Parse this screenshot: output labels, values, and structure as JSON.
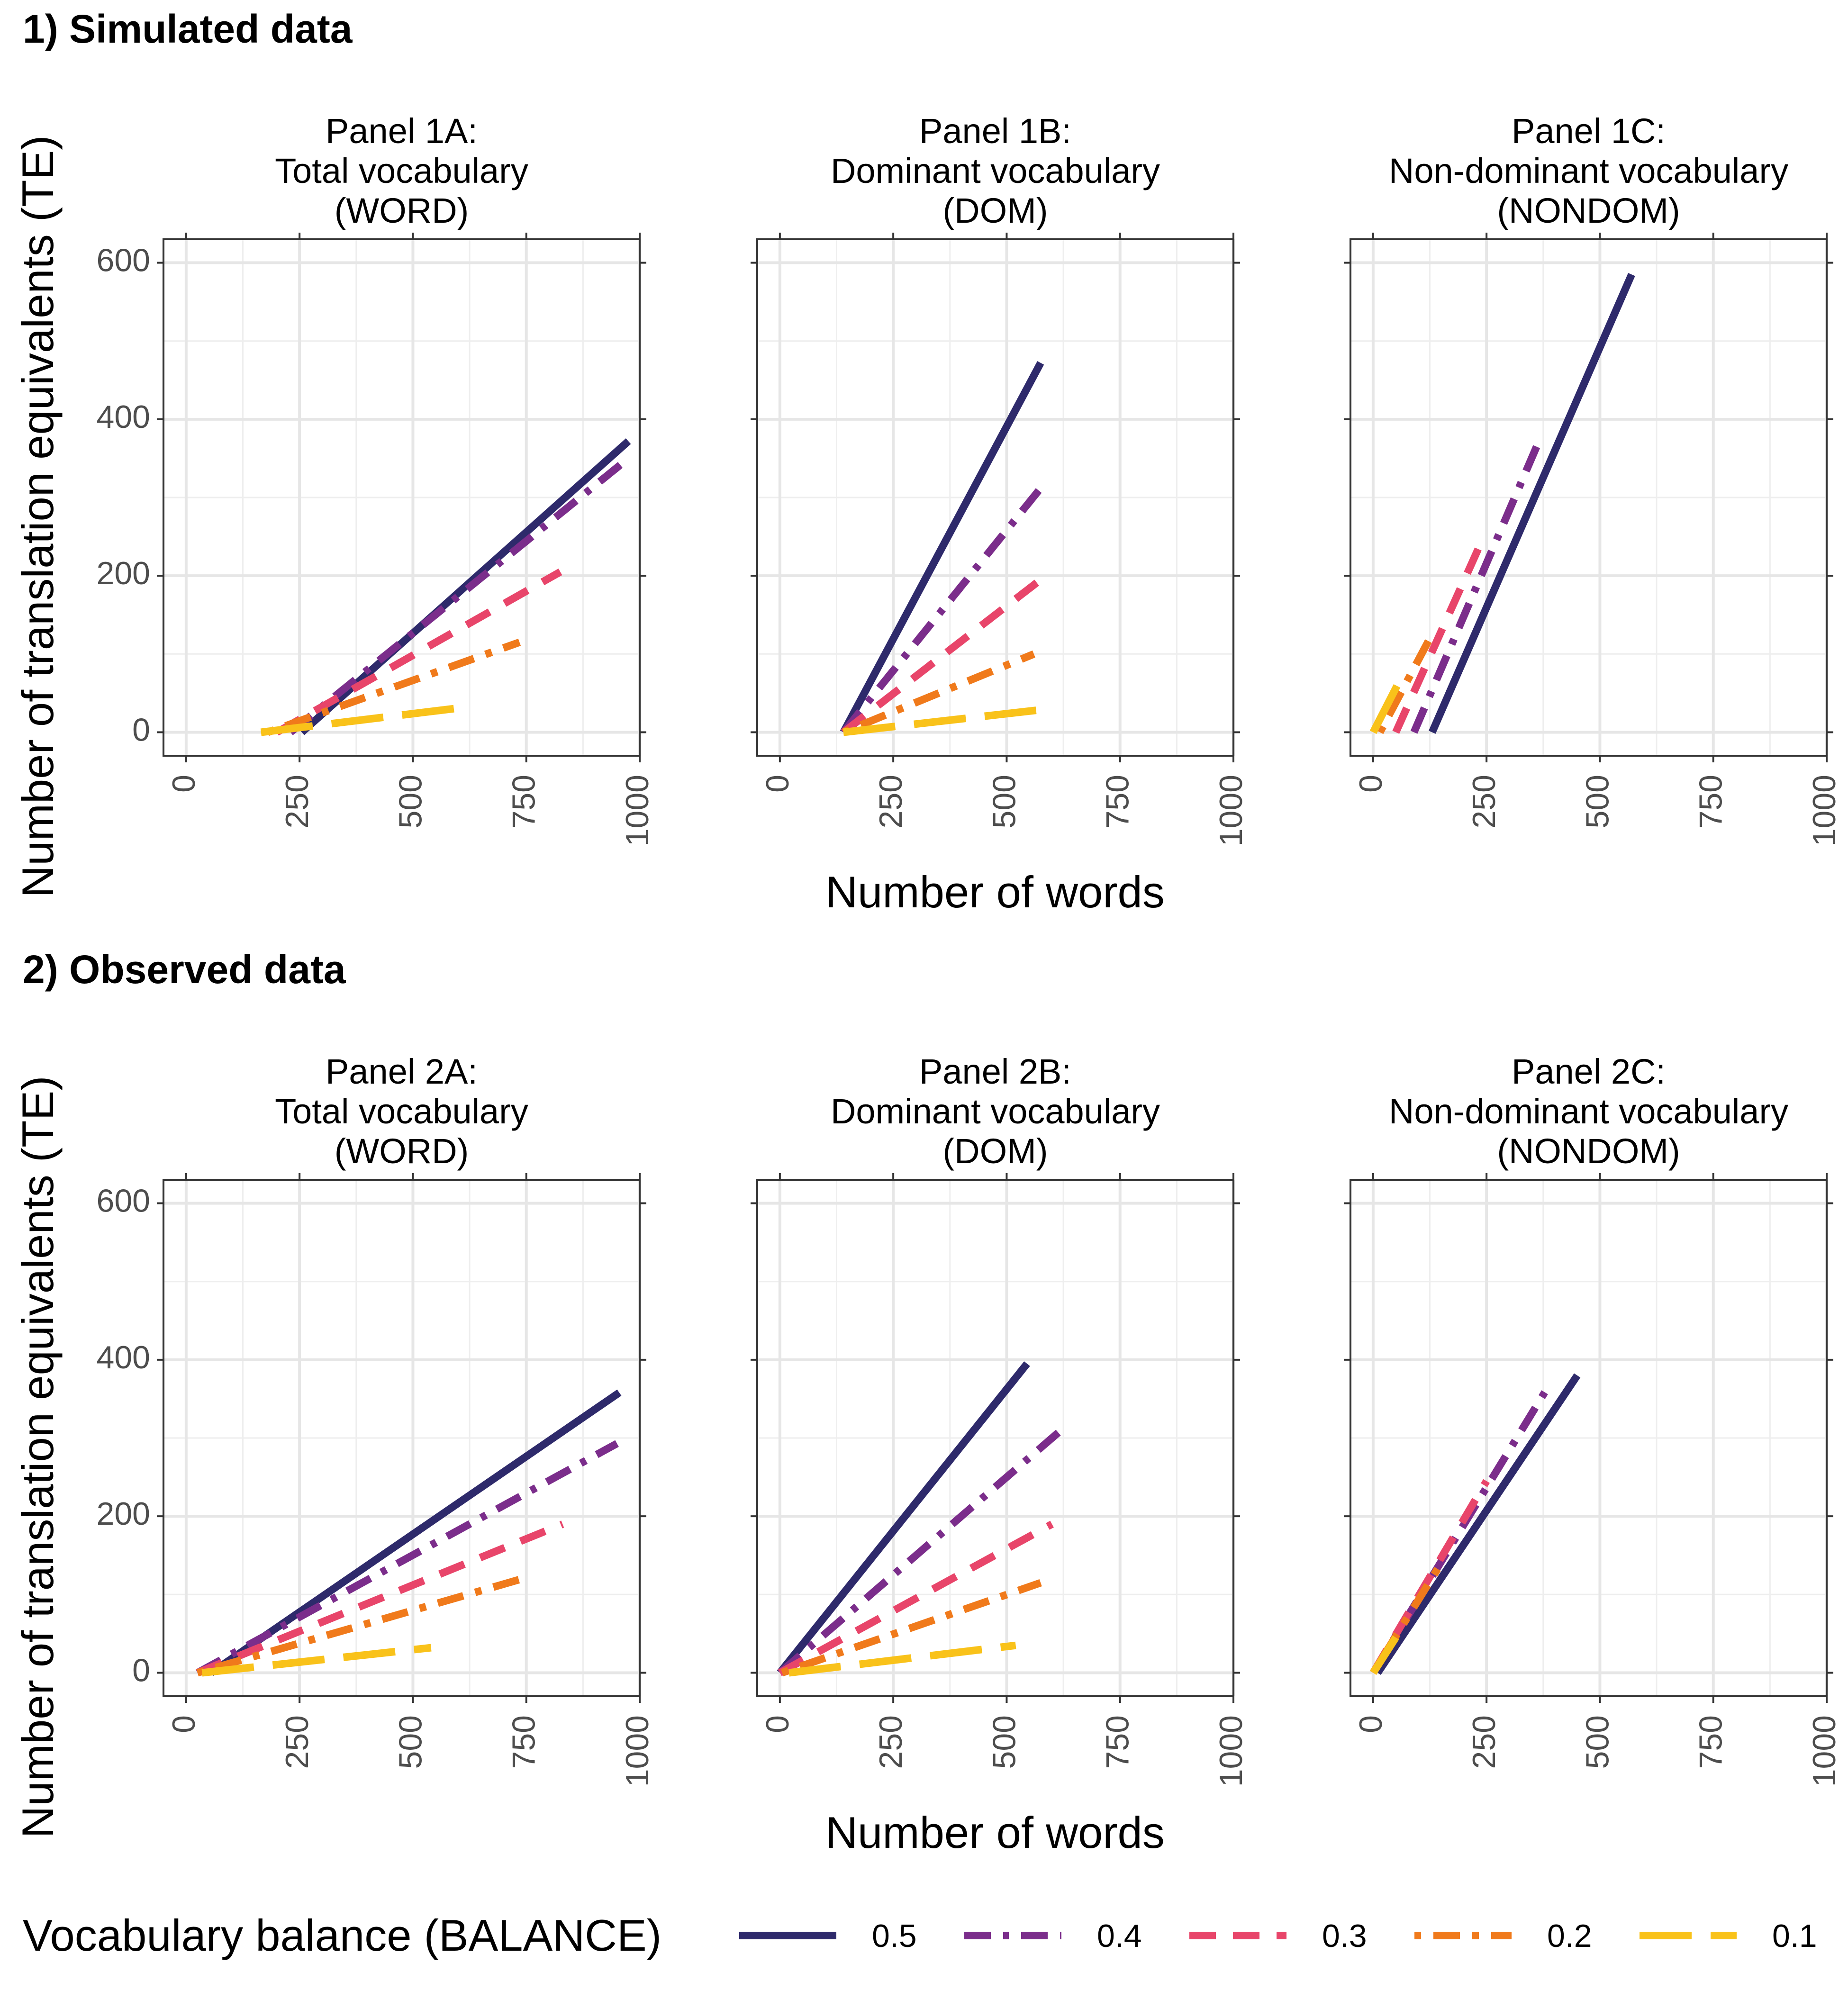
{
  "sections": [
    {
      "title": "1) Simulated data",
      "panels": [
        {
          "title_lines": [
            "Panel 1A:",
            "Total vocabulary",
            "(WORD)"
          ],
          "series": [
            {
              "balance": "0.5",
              "points": [
                [
                  255,
                  0
                ],
                [
                  975,
                  372
                ]
              ]
            },
            {
              "balance": "0.4",
              "points": [
                [
                  230,
                  0
                ],
                [
                  975,
                  350
                ]
              ]
            },
            {
              "balance": "0.3",
              "points": [
                [
                  200,
                  0
                ],
                [
                  825,
                  205
                ]
              ]
            },
            {
              "balance": "0.2",
              "points": [
                [
                  180,
                  0
                ],
                [
                  735,
                  115
                ]
              ]
            },
            {
              "balance": "0.1",
              "points": [
                [
                  165,
                  0
                ],
                [
                  630,
                  33
                ]
              ]
            }
          ]
        },
        {
          "title_lines": [
            "Panel 1B:",
            "Dominant vocabulary",
            "(DOM)"
          ],
          "series": [
            {
              "balance": "0.5",
              "points": [
                [
                  140,
                  0
                ],
                [
                  575,
                  472
                ]
              ]
            },
            {
              "balance": "0.4",
              "points": [
                [
                  140,
                  0
                ],
                [
                  575,
                  312
                ]
              ]
            },
            {
              "balance": "0.3",
              "points": [
                [
                  140,
                  0
                ],
                [
                  575,
                  195
                ]
              ]
            },
            {
              "balance": "0.2",
              "points": [
                [
                  140,
                  0
                ],
                [
                  560,
                  100
                ]
              ]
            },
            {
              "balance": "0.1",
              "points": [
                [
                  140,
                  0
                ],
                [
                  565,
                  28
                ]
              ]
            }
          ]
        },
        {
          "title_lines": [
            "Panel 1C:",
            "Non-dominant vocabulary",
            "(NONDOM)"
          ],
          "series": [
            {
              "balance": "0.5",
              "points": [
                [
                  130,
                  0
                ],
                [
                  570,
                  585
                ]
              ]
            },
            {
              "balance": "0.4",
              "points": [
                [
                  90,
                  0
                ],
                [
                  370,
                  378
                ]
              ]
            },
            {
              "balance": "0.3",
              "points": [
                [
                  50,
                  0
                ],
                [
                  240,
                  245
                ]
              ]
            },
            {
              "balance": "0.2",
              "points": [
                [
                  15,
                  0
                ],
                [
                  125,
                  120
                ]
              ]
            },
            {
              "balance": "0.1",
              "points": [
                [
                  0,
                  0
                ],
                [
                  55,
                  62
                ]
              ]
            }
          ]
        }
      ]
    },
    {
      "title": "2) Observed data",
      "panels": [
        {
          "title_lines": [
            "Panel 2A:",
            "Total vocabulary",
            "(WORD)"
          ],
          "series": [
            {
              "balance": "0.5",
              "points": [
                [
                  55,
                  0
                ],
                [
                  955,
                  358
                ]
              ]
            },
            {
              "balance": "0.4",
              "points": [
                [
                  25,
                  0
                ],
                [
                  950,
                  293
                ]
              ]
            },
            {
              "balance": "0.3",
              "points": [
                [
                  25,
                  0
                ],
                [
                  830,
                  190
                ]
              ]
            },
            {
              "balance": "0.2",
              "points": [
                [
                  25,
                  0
                ],
                [
                  740,
                  120
                ]
              ]
            },
            {
              "balance": "0.1",
              "points": [
                [
                  35,
                  0
                ],
                [
                  540,
                  32
                ]
              ]
            }
          ]
        },
        {
          "title_lines": [
            "Panel 2B:",
            "Dominant vocabulary",
            "(DOM)"
          ],
          "series": [
            {
              "balance": "0.5",
              "points": [
                [
                  0,
                  0
                ],
                [
                  545,
                  395
                ]
              ]
            },
            {
              "balance": "0.4",
              "points": [
                [
                  0,
                  0
                ],
                [
                  620,
                  310
                ]
              ]
            },
            {
              "balance": "0.3",
              "points": [
                [
                  0,
                  0
                ],
                [
                  600,
                  190
                ]
              ]
            },
            {
              "balance": "0.2",
              "points": [
                [
                  5,
                  0
                ],
                [
                  575,
                  115
                ]
              ]
            },
            {
              "balance": "0.1",
              "points": [
                [
                  20,
                  0
                ],
                [
                  520,
                  35
                ]
              ]
            }
          ]
        },
        {
          "title_lines": [
            "Panel 2C:",
            "Non-dominant vocabulary",
            "(NONDOM)"
          ],
          "series": [
            {
              "balance": "0.5",
              "points": [
                [
                  10,
                  0
                ],
                [
                  450,
                  380
                ]
              ]
            },
            {
              "balance": "0.4",
              "points": [
                [
                  0,
                  0
                ],
                [
                  380,
                  360
                ]
              ]
            },
            {
              "balance": "0.3",
              "points": [
                [
                  0,
                  0
                ],
                [
                  250,
                  245
                ]
              ]
            },
            {
              "balance": "0.2",
              "points": [
                [
                  0,
                  0
                ],
                [
                  150,
                  140
                ]
              ]
            },
            {
              "balance": "0.1",
              "points": [
                [
                  0,
                  0
                ],
                [
                  50,
                  45
                ]
              ]
            }
          ]
        }
      ]
    }
  ],
  "y_axis_title": "Number of translation equivalents (TE)",
  "x_axis_title": "Number of words",
  "x_ticks": [
    "0",
    "250",
    "500",
    "750",
    "1000"
  ],
  "y_ticks": [
    "0",
    "200",
    "400",
    "600"
  ],
  "legend": {
    "title": "Vocabulary balance (BALANCE)",
    "items": [
      {
        "label": "0.5",
        "color": "#2e2a6b",
        "dash": "solid"
      },
      {
        "label": "0.4",
        "color": "#7b2d8b",
        "dash": "dashdot"
      },
      {
        "label": "0.3",
        "color": "#e8456a",
        "dash": "dashed"
      },
      {
        "label": "0.2",
        "color": "#f07a1b",
        "dash": "dotdash"
      },
      {
        "label": "0.1",
        "color": "#f9c21a",
        "dash": "longdash"
      }
    ]
  },
  "chart_data": [
    {
      "type": "line",
      "title": "Panel 1A: Total vocabulary (WORD)",
      "xlabel": "Number of words",
      "ylabel": "Number of translation equivalents (TE)",
      "xlim": [
        -50,
        1000
      ],
      "ylim": [
        -30,
        630
      ],
      "grid": true,
      "legend_position": "bottom",
      "series": [
        {
          "name": "0.5",
          "x": [
            255,
            975
          ],
          "y": [
            0,
            372
          ]
        },
        {
          "name": "0.4",
          "x": [
            230,
            975
          ],
          "y": [
            0,
            350
          ]
        },
        {
          "name": "0.3",
          "x": [
            200,
            825
          ],
          "y": [
            0,
            205
          ]
        },
        {
          "name": "0.2",
          "x": [
            180,
            735
          ],
          "y": [
            0,
            115
          ]
        },
        {
          "name": "0.1",
          "x": [
            165,
            630
          ],
          "y": [
            0,
            33
          ]
        }
      ]
    },
    {
      "type": "line",
      "title": "Panel 1B: Dominant vocabulary (DOM)",
      "xlabel": "Number of words",
      "ylabel": "Number of translation equivalents (TE)",
      "xlim": [
        -50,
        1000
      ],
      "ylim": [
        -30,
        630
      ],
      "grid": true,
      "legend_position": "bottom",
      "series": [
        {
          "name": "0.5",
          "x": [
            140,
            575
          ],
          "y": [
            0,
            472
          ]
        },
        {
          "name": "0.4",
          "x": [
            140,
            575
          ],
          "y": [
            0,
            312
          ]
        },
        {
          "name": "0.3",
          "x": [
            140,
            575
          ],
          "y": [
            0,
            195
          ]
        },
        {
          "name": "0.2",
          "x": [
            140,
            560
          ],
          "y": [
            0,
            100
          ]
        },
        {
          "name": "0.1",
          "x": [
            140,
            565
          ],
          "y": [
            0,
            28
          ]
        }
      ]
    },
    {
      "type": "line",
      "title": "Panel 1C: Non-dominant vocabulary (NONDOM)",
      "xlabel": "Number of words",
      "ylabel": "Number of translation equivalents (TE)",
      "xlim": [
        -50,
        1000
      ],
      "ylim": [
        -30,
        630
      ],
      "grid": true,
      "legend_position": "bottom",
      "series": [
        {
          "name": "0.5",
          "x": [
            130,
            570
          ],
          "y": [
            0,
            585
          ]
        },
        {
          "name": "0.4",
          "x": [
            90,
            370
          ],
          "y": [
            0,
            378
          ]
        },
        {
          "name": "0.3",
          "x": [
            50,
            240
          ],
          "y": [
            0,
            245
          ]
        },
        {
          "name": "0.2",
          "x": [
            15,
            125
          ],
          "y": [
            0,
            120
          ]
        },
        {
          "name": "0.1",
          "x": [
            0,
            55
          ],
          "y": [
            0,
            62
          ]
        }
      ]
    },
    {
      "type": "line",
      "title": "Panel 2A: Total vocabulary (WORD)",
      "xlabel": "Number of words",
      "ylabel": "Number of translation equivalents (TE)",
      "xlim": [
        -50,
        1000
      ],
      "ylim": [
        -30,
        630
      ],
      "grid": true,
      "legend_position": "bottom",
      "series": [
        {
          "name": "0.5",
          "x": [
            55,
            955
          ],
          "y": [
            0,
            358
          ]
        },
        {
          "name": "0.4",
          "x": [
            25,
            950
          ],
          "y": [
            0,
            293
          ]
        },
        {
          "name": "0.3",
          "x": [
            25,
            830
          ],
          "y": [
            0,
            190
          ]
        },
        {
          "name": "0.2",
          "x": [
            25,
            740
          ],
          "y": [
            0,
            120
          ]
        },
        {
          "name": "0.1",
          "x": [
            35,
            540
          ],
          "y": [
            0,
            32
          ]
        }
      ]
    },
    {
      "type": "line",
      "title": "Panel 2B: Dominant vocabulary (DOM)",
      "xlabel": "Number of words",
      "ylabel": "Number of translation equivalents (TE)",
      "xlim": [
        -50,
        1000
      ],
      "ylim": [
        -30,
        630
      ],
      "grid": true,
      "legend_position": "bottom",
      "series": [
        {
          "name": "0.5",
          "x": [
            0,
            545
          ],
          "y": [
            0,
            395
          ]
        },
        {
          "name": "0.4",
          "x": [
            0,
            620
          ],
          "y": [
            0,
            310
          ]
        },
        {
          "name": "0.3",
          "x": [
            0,
            600
          ],
          "y": [
            0,
            190
          ]
        },
        {
          "name": "0.2",
          "x": [
            5,
            575
          ],
          "y": [
            0,
            115
          ]
        },
        {
          "name": "0.1",
          "x": [
            20,
            520
          ],
          "y": [
            0,
            35
          ]
        }
      ]
    },
    {
      "type": "line",
      "title": "Panel 2C: Non-dominant vocabulary (NONDOM)",
      "xlabel": "Number of words",
      "ylabel": "Number of translation equivalents (TE)",
      "xlim": [
        -50,
        1000
      ],
      "ylim": [
        -30,
        630
      ],
      "grid": true,
      "legend_position": "bottom",
      "series": [
        {
          "name": "0.5",
          "x": [
            10,
            450
          ],
          "y": [
            0,
            380
          ]
        },
        {
          "name": "0.4",
          "x": [
            0,
            380
          ],
          "y": [
            0,
            360
          ]
        },
        {
          "name": "0.3",
          "x": [
            0,
            250
          ],
          "y": [
            0,
            245
          ]
        },
        {
          "name": "0.2",
          "x": [
            0,
            150
          ],
          "y": [
            0,
            140
          ]
        },
        {
          "name": "0.1",
          "x": [
            0,
            50
          ],
          "y": [
            0,
            45
          ]
        }
      ]
    }
  ]
}
